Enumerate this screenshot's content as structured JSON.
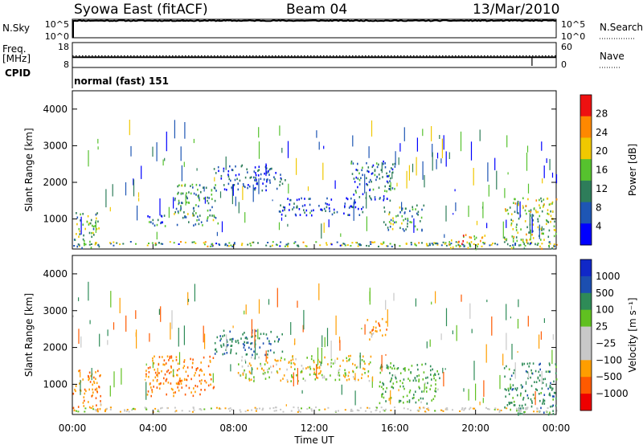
{
  "header": {
    "station": "Syowa East (fitACF)",
    "beam": "Beam 04",
    "date": "13/Mar/2010"
  },
  "left_labels": {
    "nsky": "N.Sky",
    "freq_line1": "Freq.",
    "freq_line2": "[MHz]",
    "cpid": "CPID"
  },
  "right_labels": {
    "nsearch": "N.Search",
    "nave": "Nave"
  },
  "cpid_text": "normal (fast) 151",
  "chart_data": [
    {
      "type": "line",
      "panel": "noise",
      "series": [
        {
          "name": "N.Sky",
          "values_log10": [
            4.8,
            4.8,
            4.8,
            4.8,
            4.8,
            4.8,
            4.8,
            4.8,
            4.8,
            4.8,
            4.8,
            4.8,
            4.8
          ]
        },
        {
          "name": "N.Search",
          "values_log10": [
            4.8,
            4.8,
            4.8,
            4.8,
            4.8,
            4.8,
            4.8,
            4.8,
            4.8,
            4.8,
            4.8,
            4.8,
            4.8
          ]
        }
      ],
      "x_hours": [
        0,
        2,
        4,
        6,
        8,
        10,
        12,
        14,
        16,
        18,
        20,
        22,
        24
      ],
      "left_ticks": [
        "10^5",
        "10^0"
      ],
      "right_ticks": [
        "10^5",
        "10^0"
      ]
    },
    {
      "type": "line",
      "panel": "frequency",
      "series": [
        {
          "name": "Freq.",
          "values": [
            12.1,
            12.1,
            12.1,
            12.1,
            12.1,
            12.1,
            12.1,
            12.1,
            12.1,
            12.1,
            12.1,
            12.1,
            12.1
          ]
        },
        {
          "name": "Nave",
          "values": [
            28,
            28,
            28,
            28,
            28,
            28,
            28,
            28,
            28,
            28,
            28,
            28,
            28
          ]
        }
      ],
      "x_hours": [
        0,
        2,
        4,
        6,
        8,
        10,
        12,
        14,
        16,
        18,
        20,
        22,
        24
      ],
      "left_ticks": [
        "18",
        "8"
      ],
      "right_ticks": [
        "60",
        "0"
      ]
    },
    {
      "type": "heatmap",
      "panel": "power",
      "ylabel": "Slant Range [km]",
      "y_ticks": [
        "4000",
        "3000",
        "2000",
        "1000"
      ],
      "ylim": [
        180,
        4500
      ],
      "colorbar_label": "Power [dB]",
      "colorbar_ticks": [
        "28",
        "24",
        "20",
        "16",
        "12",
        "8",
        "4"
      ],
      "colorbar_colors": [
        "#0000ff",
        "#1e56b4",
        "#2e7d5a",
        "#56c22e",
        "#f0c800",
        "#ff8800",
        "#ee1111"
      ],
      "features": [
        {
          "t_start": 0.0,
          "t_end": 1.3,
          "r_start": 200,
          "r_end": 1200,
          "value": 14
        },
        {
          "t_start": 3.6,
          "t_end": 4.6,
          "r_start": 800,
          "r_end": 1200,
          "value": 10
        },
        {
          "t_start": 5.0,
          "t_end": 7.2,
          "r_start": 800,
          "r_end": 2000,
          "value": 12
        },
        {
          "t_start": 7.0,
          "t_end": 10.6,
          "r_start": 1800,
          "r_end": 2500,
          "value": 6
        },
        {
          "t_start": 10.2,
          "t_end": 14.4,
          "r_start": 1100,
          "r_end": 1600,
          "value": 6
        },
        {
          "t_start": 13.8,
          "t_end": 16.0,
          "r_start": 1500,
          "r_end": 2600,
          "value": 8
        },
        {
          "t_start": 15.4,
          "t_end": 17.5,
          "r_start": 700,
          "r_end": 1400,
          "value": 12
        },
        {
          "t_start": 18.6,
          "t_end": 20.6,
          "r_start": 200,
          "r_end": 600,
          "value": 20
        },
        {
          "t_start": 21.4,
          "t_end": 24.0,
          "r_start": 200,
          "r_end": 1600,
          "value": 16
        }
      ]
    },
    {
      "type": "heatmap",
      "panel": "velocity",
      "ylabel": "Slant Range [km]",
      "xlabel": "Time UT",
      "y_ticks": [
        "4000",
        "3000",
        "2000",
        "1000"
      ],
      "x_ticks": [
        "00:00",
        "04:00",
        "08:00",
        "12:00",
        "16:00",
        "20:00",
        "00:00"
      ],
      "ylim": [
        180,
        4500
      ],
      "colorbar_label": "Velocity [m s⁻¹]",
      "colorbar_ticks": [
        "1000",
        "500",
        "100",
        "25",
        "−25",
        "−100",
        "−500",
        "−1000"
      ],
      "colorbar_colors": [
        "#ee0000",
        "#ff5a00",
        "#ff9e00",
        "#c8c8c8",
        "#c8c8c8",
        "#60c020",
        "#2e8b57",
        "#1c4fb0",
        "#1028c8"
      ],
      "features": [
        {
          "t_start": 0.0,
          "t_end": 1.4,
          "r_start": 300,
          "r_end": 1400,
          "value": -300
        },
        {
          "t_start": 3.6,
          "t_end": 7.0,
          "r_start": 700,
          "r_end": 1800,
          "value": -400
        },
        {
          "t_start": 7.0,
          "t_end": 10.4,
          "r_start": 1800,
          "r_end": 2500,
          "value": 600
        },
        {
          "t_start": 8.2,
          "t_end": 14.8,
          "r_start": 1100,
          "r_end": 1800,
          "value": 0
        },
        {
          "t_start": 14.6,
          "t_end": 15.6,
          "r_start": 2200,
          "r_end": 2800,
          "value": -200
        },
        {
          "t_start": 15.2,
          "t_end": 18.2,
          "r_start": 500,
          "r_end": 1600,
          "value": 300
        },
        {
          "t_start": 21.4,
          "t_end": 24.0,
          "r_start": 200,
          "r_end": 1600,
          "value": 500
        }
      ]
    }
  ]
}
